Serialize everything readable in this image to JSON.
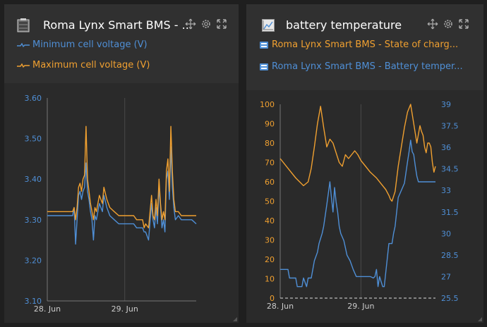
{
  "colors": {
    "blue": "#4f8fd6",
    "orange": "#f0a030",
    "grid": "#4a4a4a",
    "axis": "#9a9a9a"
  },
  "widgets": [
    {
      "title": "Roma Lynx Smart BMS - ...",
      "icon": "battery-icon",
      "legend": [
        {
          "label": "Minimum cell voltage (V)",
          "color": "#4f8fd6"
        },
        {
          "label": "Maximum cell voltage (V)",
          "color": "#f0a030"
        }
      ]
    },
    {
      "title": "battery temperature",
      "icon": "line-chart-icon",
      "legend": [
        {
          "label": "Roma Lynx Smart BMS  - State of charg...",
          "color": "#f0a030"
        },
        {
          "label": "Roma Lynx Smart BMS  - Battery temper...",
          "color": "#4f8fd6"
        }
      ]
    }
  ],
  "chart_data": [
    {
      "type": "line",
      "x_ticks": [
        "28. Jun",
        "29. Jun"
      ],
      "ylim": [
        3.1,
        3.6
      ],
      "y_ticks": [
        "3.10",
        "3.20",
        "3.30",
        "3.40",
        "3.50",
        "3.60"
      ],
      "series": [
        {
          "name": "Minimum cell voltage (V)",
          "color": "#4f8fd6",
          "x": [
            0,
            0.02,
            0.05,
            0.08,
            0.12,
            0.15,
            0.17,
            0.18,
            0.19,
            0.2,
            0.21,
            0.22,
            0.23,
            0.24,
            0.25,
            0.26,
            0.27,
            0.28,
            0.29,
            0.3,
            0.31,
            0.32,
            0.33,
            0.35,
            0.37,
            0.38,
            0.4,
            0.42,
            0.45,
            0.48,
            0.5,
            0.52,
            0.55,
            0.58,
            0.6,
            0.62,
            0.64,
            0.65,
            0.66,
            0.68,
            0.7,
            0.71,
            0.72,
            0.73,
            0.74,
            0.75,
            0.76,
            0.77,
            0.78,
            0.79,
            0.8,
            0.81,
            0.82,
            0.83,
            0.84,
            0.85,
            0.86,
            0.88,
            0.9,
            0.92,
            0.95,
            0.97,
            1.0
          ],
          "y": [
            3.31,
            3.31,
            3.31,
            3.31,
            3.31,
            3.31,
            3.31,
            3.33,
            3.24,
            3.3,
            3.36,
            3.37,
            3.35,
            3.37,
            3.38,
            3.44,
            3.37,
            3.35,
            3.32,
            3.3,
            3.25,
            3.31,
            3.3,
            3.34,
            3.32,
            3.36,
            3.33,
            3.31,
            3.3,
            3.29,
            3.29,
            3.29,
            3.29,
            3.29,
            3.28,
            3.28,
            3.28,
            3.27,
            3.27,
            3.25,
            3.34,
            3.3,
            3.28,
            3.33,
            3.29,
            3.38,
            3.33,
            3.28,
            3.3,
            3.27,
            3.4,
            3.42,
            3.35,
            3.48,
            3.38,
            3.33,
            3.3,
            3.31,
            3.3,
            3.3,
            3.3,
            3.3,
            3.29
          ]
        },
        {
          "name": "Maximum cell voltage (V)",
          "color": "#f0a030",
          "x": [
            0,
            0.02,
            0.05,
            0.08,
            0.12,
            0.15,
            0.17,
            0.18,
            0.19,
            0.2,
            0.21,
            0.22,
            0.23,
            0.24,
            0.25,
            0.26,
            0.27,
            0.28,
            0.29,
            0.3,
            0.31,
            0.32,
            0.33,
            0.35,
            0.37,
            0.38,
            0.4,
            0.42,
            0.45,
            0.48,
            0.5,
            0.52,
            0.55,
            0.58,
            0.6,
            0.62,
            0.64,
            0.65,
            0.66,
            0.68,
            0.7,
            0.71,
            0.72,
            0.73,
            0.74,
            0.75,
            0.76,
            0.77,
            0.78,
            0.79,
            0.8,
            0.81,
            0.82,
            0.83,
            0.84,
            0.85,
            0.86,
            0.88,
            0.9,
            0.92,
            0.95,
            0.97,
            1.0
          ],
          "y": [
            3.32,
            3.32,
            3.32,
            3.32,
            3.32,
            3.32,
            3.32,
            3.33,
            3.3,
            3.33,
            3.38,
            3.39,
            3.37,
            3.4,
            3.41,
            3.53,
            3.4,
            3.37,
            3.34,
            3.32,
            3.3,
            3.33,
            3.32,
            3.36,
            3.34,
            3.38,
            3.35,
            3.33,
            3.32,
            3.31,
            3.31,
            3.31,
            3.31,
            3.31,
            3.3,
            3.3,
            3.3,
            3.28,
            3.29,
            3.28,
            3.36,
            3.31,
            3.3,
            3.35,
            3.31,
            3.4,
            3.34,
            3.3,
            3.32,
            3.3,
            3.42,
            3.45,
            3.37,
            3.53,
            3.42,
            3.35,
            3.32,
            3.32,
            3.31,
            3.31,
            3.31,
            3.31,
            3.31
          ]
        }
      ]
    },
    {
      "type": "line",
      "x_ticks": [
        "28. Jun",
        "29. Jun"
      ],
      "ylim": [
        0,
        100
      ],
      "y_ticks": [
        "0",
        "10",
        "20",
        "30",
        "40",
        "50",
        "60",
        "70",
        "80",
        "90",
        "100"
      ],
      "y2lim": [
        25.5,
        39
      ],
      "y2_ticks": [
        "25.5",
        "27",
        "28.5",
        "30",
        "31.5",
        "33",
        "34.5",
        "36",
        "37.5",
        "39"
      ],
      "series": [
        {
          "name": "Roma Lynx Smart BMS  - State of charg...",
          "color": "#f0a030",
          "axis": "left",
          "x": [
            0,
            0.05,
            0.1,
            0.15,
            0.18,
            0.2,
            0.22,
            0.24,
            0.26,
            0.28,
            0.3,
            0.32,
            0.34,
            0.36,
            0.38,
            0.4,
            0.42,
            0.44,
            0.46,
            0.48,
            0.5,
            0.52,
            0.55,
            0.58,
            0.62,
            0.65,
            0.68,
            0.7,
            0.71,
            0.72,
            0.74,
            0.76,
            0.78,
            0.8,
            0.82,
            0.84,
            0.86,
            0.88,
            0.9,
            0.91,
            0.92,
            0.93,
            0.94,
            0.95,
            0.96,
            0.97,
            0.98,
            0.99,
            1.0
          ],
          "y": [
            72,
            67,
            62,
            58,
            60,
            67,
            78,
            90,
            99,
            88,
            78,
            82,
            80,
            75,
            70,
            68,
            74,
            72,
            74,
            76,
            74,
            71,
            68,
            65,
            62,
            59,
            56,
            53,
            51,
            50,
            55,
            68,
            78,
            88,
            96,
            100,
            90,
            80,
            89,
            86,
            84,
            78,
            75,
            80,
            80,
            78,
            70,
            65,
            68
          ]
        },
        {
          "name": "Roma Lynx Smart BMS  - Battery temper...",
          "color": "#4f8fd6",
          "axis": "right",
          "x": [
            0,
            0.05,
            0.06,
            0.1,
            0.11,
            0.14,
            0.15,
            0.17,
            0.18,
            0.2,
            0.21,
            0.22,
            0.24,
            0.25,
            0.27,
            0.28,
            0.3,
            0.32,
            0.33,
            0.34,
            0.35,
            0.36,
            0.37,
            0.38,
            0.39,
            0.41,
            0.42,
            0.43,
            0.45,
            0.47,
            0.49,
            0.52,
            0.55,
            0.58,
            0.6,
            0.61,
            0.62,
            0.63,
            0.64,
            0.66,
            0.67,
            0.7,
            0.71,
            0.72,
            0.73,
            0.74,
            0.75,
            0.76,
            0.8,
            0.82,
            0.83,
            0.84,
            0.85,
            0.86,
            0.87,
            0.88,
            0.89,
            0.9,
            0.91,
            0.92,
            0.93,
            0.94,
            0.96,
            1.0
          ],
          "y": [
            27.5,
            27.5,
            26.9,
            26.9,
            26.3,
            26.3,
            26.9,
            26.3,
            26.9,
            26.9,
            27.5,
            28.1,
            28.7,
            29.3,
            30,
            30.5,
            32,
            33.6,
            32.5,
            31.5,
            33.2,
            32.2,
            31.5,
            30.5,
            30,
            29.5,
            29,
            28.5,
            28.1,
            27.5,
            27,
            27,
            27,
            27,
            26.9,
            27,
            27.5,
            26.3,
            27,
            26.3,
            26.3,
            29.3,
            29.3,
            29.3,
            30,
            30.5,
            31.5,
            32.5,
            33.5,
            35,
            35.7,
            36.5,
            35.7,
            35.5,
            34.7,
            34,
            33.6,
            33.6,
            33.6,
            33.6,
            33.6,
            33.6,
            33.6,
            33.6
          ]
        }
      ]
    }
  ]
}
